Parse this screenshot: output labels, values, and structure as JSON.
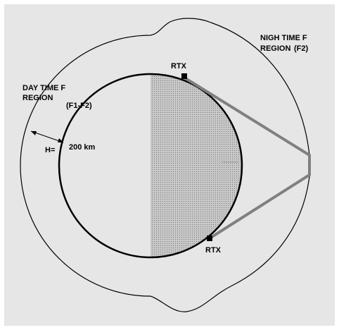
{
  "labels": {
    "day_region_line1": "DAY TIME F",
    "day_region_line2": "REGION",
    "day_region_layers": "(F1-F2)",
    "night_region_line1": "NIGH TIME F",
    "night_region_line2": "REGION",
    "night_region_layers": "(F2)",
    "rtx_top": "RTX",
    "rtx_bottom": "RTX",
    "height_label": "H=",
    "height_value": "200 km"
  }
}
